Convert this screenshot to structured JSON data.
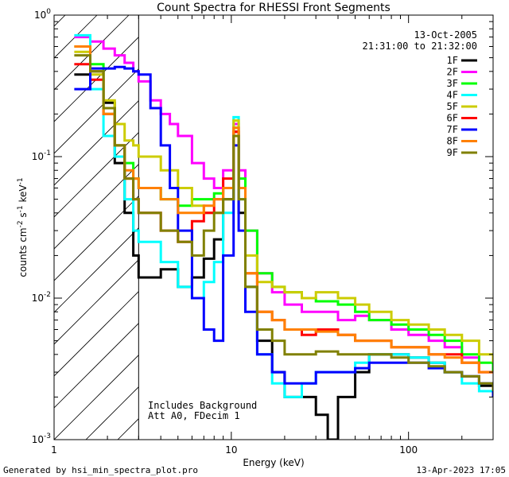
{
  "chart_data": {
    "type": "line",
    "title": "Count Spectra for RHESSI Front Segments",
    "xlabel": "Energy (keV)",
    "ylabel": "counts cm^-2 s^-1 keV^-1",
    "ylabel_parts": {
      "base": "counts cm",
      "e1": "-2",
      "mid": " s",
      "e2": "-1",
      "end": " keV",
      "e3": "-1"
    },
    "xscale": "log",
    "yscale": "log",
    "xlim": [
      1.0,
      300.0
    ],
    "ylim": [
      0.001,
      1.0
    ],
    "x_ticks": [
      {
        "value": 1,
        "label": "1"
      },
      {
        "value": 10,
        "label": "10"
      },
      {
        "value": 100,
        "label": "100"
      }
    ],
    "y_ticks": [
      {
        "value": 1,
        "label": "10",
        "exp": "0"
      },
      {
        "value": 0.1,
        "label": "10",
        "exp": "-1"
      },
      {
        "value": 0.01,
        "label": "10",
        "exp": "-2"
      },
      {
        "value": 0.001,
        "label": "10",
        "exp": "-3"
      }
    ],
    "shaded_region": {
      "from": 1.0,
      "to": 3.0,
      "style": "hatched"
    },
    "date": "13-Oct-2005",
    "time_range": "21:31:00 to 21:32:00",
    "notes": [
      "Includes Background",
      "Att A0, FDecim 1"
    ],
    "legend_position": "top-right",
    "series": [
      {
        "name": "1F",
        "color": "#000000",
        "points": [
          [
            1.3,
            0.38
          ],
          [
            1.6,
            0.4
          ],
          [
            1.9,
            0.24
          ],
          [
            2.2,
            0.09
          ],
          [
            2.5,
            0.04
          ],
          [
            2.8,
            0.02
          ],
          [
            3.0,
            0.014
          ],
          [
            4.0,
            0.016
          ],
          [
            5.0,
            0.012
          ],
          [
            6.0,
            0.014
          ],
          [
            7.0,
            0.019
          ],
          [
            8.0,
            0.026
          ],
          [
            9.0,
            0.05
          ],
          [
            10.3,
            0.15
          ],
          [
            11.0,
            0.04
          ],
          [
            12.0,
            0.012
          ],
          [
            14.0,
            0.005
          ],
          [
            17.0,
            0.003
          ],
          [
            20.0,
            0.002
          ],
          [
            25.0,
            0.002
          ],
          [
            30.0,
            0.0015
          ],
          [
            35.0,
            0.001
          ],
          [
            40.0,
            0.002
          ],
          [
            50.0,
            0.003
          ],
          [
            60.0,
            0.004
          ],
          [
            80.0,
            0.004
          ],
          [
            100.0,
            0.0038
          ],
          [
            130.0,
            0.0035
          ],
          [
            160.0,
            0.003
          ],
          [
            200.0,
            0.0028
          ],
          [
            250.0,
            0.0024
          ],
          [
            300.0,
            0.002
          ]
        ]
      },
      {
        "name": "2F",
        "color": "#ff00ff",
        "points": [
          [
            1.3,
            0.7
          ],
          [
            1.6,
            0.65
          ],
          [
            1.9,
            0.58
          ],
          [
            2.2,
            0.52
          ],
          [
            2.5,
            0.46
          ],
          [
            2.8,
            0.4
          ],
          [
            3.0,
            0.34
          ],
          [
            3.5,
            0.25
          ],
          [
            4.0,
            0.2
          ],
          [
            4.5,
            0.17
          ],
          [
            5.0,
            0.14
          ],
          [
            6.0,
            0.09
          ],
          [
            7.0,
            0.07
          ],
          [
            8.0,
            0.06
          ],
          [
            9.0,
            0.08
          ],
          [
            10.3,
            0.17
          ],
          [
            11.0,
            0.08
          ],
          [
            12.0,
            0.03
          ],
          [
            14.0,
            0.015
          ],
          [
            17.0,
            0.011
          ],
          [
            20.0,
            0.009
          ],
          [
            25.0,
            0.008
          ],
          [
            30.0,
            0.008
          ],
          [
            40.0,
            0.007
          ],
          [
            50.0,
            0.0075
          ],
          [
            60.0,
            0.007
          ],
          [
            80.0,
            0.006
          ],
          [
            100.0,
            0.0055
          ],
          [
            130.0,
            0.005
          ],
          [
            160.0,
            0.0045
          ],
          [
            200.0,
            0.0038
          ],
          [
            250.0,
            0.003
          ],
          [
            300.0,
            0.003
          ]
        ]
      },
      {
        "name": "3F",
        "color": "#00ff00",
        "points": [
          [
            1.3,
            0.6
          ],
          [
            1.6,
            0.45
          ],
          [
            1.9,
            0.2
          ],
          [
            2.2,
            0.12
          ],
          [
            2.5,
            0.09
          ],
          [
            2.8,
            0.07
          ],
          [
            3.0,
            0.06
          ],
          [
            4.0,
            0.05
          ],
          [
            5.0,
            0.045
          ],
          [
            6.0,
            0.05
          ],
          [
            7.0,
            0.05
          ],
          [
            8.0,
            0.055
          ],
          [
            9.0,
            0.06
          ],
          [
            10.3,
            0.16
          ],
          [
            11.0,
            0.07
          ],
          [
            12.0,
            0.03
          ],
          [
            14.0,
            0.015
          ],
          [
            17.0,
            0.012
          ],
          [
            20.0,
            0.011
          ],
          [
            25.0,
            0.01
          ],
          [
            30.0,
            0.0095
          ],
          [
            40.0,
            0.009
          ],
          [
            50.0,
            0.008
          ],
          [
            60.0,
            0.007
          ],
          [
            80.0,
            0.0065
          ],
          [
            100.0,
            0.006
          ],
          [
            130.0,
            0.0055
          ],
          [
            160.0,
            0.005
          ],
          [
            200.0,
            0.004
          ],
          [
            250.0,
            0.0035
          ],
          [
            300.0,
            0.003
          ]
        ]
      },
      {
        "name": "4F",
        "color": "#00ffff",
        "points": [
          [
            1.3,
            0.72
          ],
          [
            1.6,
            0.3
          ],
          [
            1.9,
            0.14
          ],
          [
            2.2,
            0.1
          ],
          [
            2.5,
            0.05
          ],
          [
            2.8,
            0.03
          ],
          [
            3.0,
            0.025
          ],
          [
            4.0,
            0.018
          ],
          [
            5.0,
            0.012
          ],
          [
            6.0,
            0.01
          ],
          [
            7.0,
            0.013
          ],
          [
            8.0,
            0.018
          ],
          [
            9.0,
            0.04
          ],
          [
            10.3,
            0.19
          ],
          [
            11.0,
            0.05
          ],
          [
            12.0,
            0.012
          ],
          [
            14.0,
            0.004
          ],
          [
            17.0,
            0.0025
          ],
          [
            20.0,
            0.002
          ],
          [
            25.0,
            0.0025
          ],
          [
            30.0,
            0.003
          ],
          [
            40.0,
            0.003
          ],
          [
            50.0,
            0.0035
          ],
          [
            60.0,
            0.004
          ],
          [
            80.0,
            0.004
          ],
          [
            100.0,
            0.0038
          ],
          [
            130.0,
            0.0035
          ],
          [
            160.0,
            0.003
          ],
          [
            200.0,
            0.0025
          ],
          [
            250.0,
            0.0022
          ],
          [
            300.0,
            0.002
          ]
        ]
      },
      {
        "name": "5F",
        "color": "#cccc00",
        "points": [
          [
            1.3,
            0.55
          ],
          [
            1.6,
            0.38
          ],
          [
            1.9,
            0.25
          ],
          [
            2.2,
            0.17
          ],
          [
            2.5,
            0.13
          ],
          [
            2.8,
            0.12
          ],
          [
            3.0,
            0.1
          ],
          [
            4.0,
            0.08
          ],
          [
            5.0,
            0.06
          ],
          [
            6.0,
            0.045
          ],
          [
            7.0,
            0.04
          ],
          [
            8.0,
            0.04
          ],
          [
            9.0,
            0.06
          ],
          [
            10.3,
            0.18
          ],
          [
            11.0,
            0.06
          ],
          [
            12.0,
            0.02
          ],
          [
            14.0,
            0.013
          ],
          [
            17.0,
            0.012
          ],
          [
            20.0,
            0.011
          ],
          [
            25.0,
            0.01
          ],
          [
            30.0,
            0.011
          ],
          [
            40.0,
            0.01
          ],
          [
            50.0,
            0.009
          ],
          [
            60.0,
            0.008
          ],
          [
            80.0,
            0.007
          ],
          [
            100.0,
            0.0065
          ],
          [
            130.0,
            0.006
          ],
          [
            160.0,
            0.0055
          ],
          [
            200.0,
            0.005
          ],
          [
            250.0,
            0.004
          ],
          [
            300.0,
            0.0035
          ]
        ]
      },
      {
        "name": "6F",
        "color": "#ff0000",
        "points": [
          [
            1.3,
            0.45
          ],
          [
            1.6,
            0.35
          ],
          [
            1.9,
            0.2
          ],
          [
            2.2,
            0.12
          ],
          [
            2.5,
            0.07
          ],
          [
            2.8,
            0.05
          ],
          [
            3.0,
            0.04
          ],
          [
            4.0,
            0.03
          ],
          [
            5.0,
            0.025
          ],
          [
            6.0,
            0.035
          ],
          [
            7.0,
            0.04
          ],
          [
            8.0,
            0.05
          ],
          [
            9.0,
            0.07
          ],
          [
            10.3,
            0.15
          ],
          [
            11.0,
            0.06
          ],
          [
            12.0,
            0.015
          ],
          [
            14.0,
            0.008
          ],
          [
            17.0,
            0.007
          ],
          [
            20.0,
            0.006
          ],
          [
            25.0,
            0.0055
          ],
          [
            30.0,
            0.006
          ],
          [
            40.0,
            0.0055
          ],
          [
            50.0,
            0.005
          ],
          [
            60.0,
            0.005
          ],
          [
            80.0,
            0.0045
          ],
          [
            100.0,
            0.0045
          ],
          [
            130.0,
            0.004
          ],
          [
            160.0,
            0.004
          ],
          [
            200.0,
            0.0035
          ],
          [
            250.0,
            0.003
          ],
          [
            300.0,
            0.003
          ]
        ]
      },
      {
        "name": "7F",
        "color": "#0000ff",
        "points": [
          [
            1.3,
            0.3
          ],
          [
            1.6,
            0.42
          ],
          [
            1.9,
            0.42
          ],
          [
            2.2,
            0.43
          ],
          [
            2.5,
            0.42
          ],
          [
            2.8,
            0.4
          ],
          [
            3.0,
            0.38
          ],
          [
            3.5,
            0.22
          ],
          [
            4.0,
            0.12
          ],
          [
            4.5,
            0.06
          ],
          [
            5.0,
            0.03
          ],
          [
            6.0,
            0.01
          ],
          [
            7.0,
            0.006
          ],
          [
            8.0,
            0.005
          ],
          [
            9.0,
            0.02
          ],
          [
            10.3,
            0.12
          ],
          [
            11.0,
            0.03
          ],
          [
            12.0,
            0.008
          ],
          [
            14.0,
            0.004
          ],
          [
            17.0,
            0.003
          ],
          [
            20.0,
            0.0025
          ],
          [
            25.0,
            0.0025
          ],
          [
            30.0,
            0.003
          ],
          [
            40.0,
            0.003
          ],
          [
            50.0,
            0.0032
          ],
          [
            60.0,
            0.0035
          ],
          [
            80.0,
            0.0035
          ],
          [
            100.0,
            0.0035
          ],
          [
            130.0,
            0.0032
          ],
          [
            160.0,
            0.003
          ],
          [
            200.0,
            0.0028
          ],
          [
            250.0,
            0.0025
          ],
          [
            300.0,
            0.002
          ]
        ]
      },
      {
        "name": "8F",
        "color": "#ff8000",
        "points": [
          [
            1.3,
            0.6
          ],
          [
            1.6,
            0.4
          ],
          [
            1.9,
            0.2
          ],
          [
            2.2,
            0.12
          ],
          [
            2.5,
            0.08
          ],
          [
            2.8,
            0.07
          ],
          [
            3.0,
            0.06
          ],
          [
            4.0,
            0.05
          ],
          [
            5.0,
            0.04
          ],
          [
            6.0,
            0.04
          ],
          [
            7.0,
            0.045
          ],
          [
            8.0,
            0.05
          ],
          [
            9.0,
            0.06
          ],
          [
            10.3,
            0.16
          ],
          [
            11.0,
            0.06
          ],
          [
            12.0,
            0.015
          ],
          [
            14.0,
            0.008
          ],
          [
            17.0,
            0.007
          ],
          [
            20.0,
            0.006
          ],
          [
            25.0,
            0.006
          ],
          [
            30.0,
            0.0058
          ],
          [
            40.0,
            0.0055
          ],
          [
            50.0,
            0.005
          ],
          [
            60.0,
            0.005
          ],
          [
            80.0,
            0.0045
          ],
          [
            100.0,
            0.0045
          ],
          [
            130.0,
            0.004
          ],
          [
            160.0,
            0.0038
          ],
          [
            200.0,
            0.0035
          ],
          [
            250.0,
            0.003
          ],
          [
            300.0,
            0.003
          ]
        ]
      },
      {
        "name": "9F",
        "color": "#808000",
        "points": [
          [
            1.3,
            0.52
          ],
          [
            1.6,
            0.4
          ],
          [
            1.9,
            0.22
          ],
          [
            2.2,
            0.12
          ],
          [
            2.5,
            0.07
          ],
          [
            2.8,
            0.05
          ],
          [
            3.0,
            0.04
          ],
          [
            4.0,
            0.03
          ],
          [
            5.0,
            0.025
          ],
          [
            6.0,
            0.02
          ],
          [
            7.0,
            0.03
          ],
          [
            8.0,
            0.04
          ],
          [
            9.0,
            0.05
          ],
          [
            10.3,
            0.14
          ],
          [
            11.0,
            0.05
          ],
          [
            12.0,
            0.012
          ],
          [
            14.0,
            0.006
          ],
          [
            17.0,
            0.005
          ],
          [
            20.0,
            0.004
          ],
          [
            25.0,
            0.004
          ],
          [
            30.0,
            0.0042
          ],
          [
            40.0,
            0.004
          ],
          [
            50.0,
            0.004
          ],
          [
            60.0,
            0.004
          ],
          [
            80.0,
            0.0038
          ],
          [
            100.0,
            0.0035
          ],
          [
            130.0,
            0.0033
          ],
          [
            160.0,
            0.003
          ],
          [
            200.0,
            0.0028
          ],
          [
            250.0,
            0.0025
          ],
          [
            300.0,
            0.0022
          ]
        ]
      }
    ]
  },
  "footer": {
    "generated_by": "Generated by hsi_min_spectra_plot.pro",
    "timestamp": "13-Apr-2023 17:05"
  }
}
